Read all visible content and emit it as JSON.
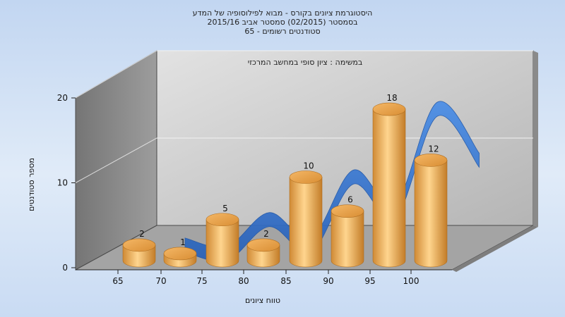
{
  "chart_data": {
    "type": "bar",
    "title_lines": [
      "היסטוגרמת ציונים בקורס - מבוא לפילוסופיה של המדע",
      "בסמסטר  (02/2015)  סמסטר אביב 2015/16",
      "סטודנטים רשומים - 65"
    ],
    "annotation": "במשימה : ציון סופי במחשב המרכזי",
    "xlabel": "טווח ציונים",
    "ylabel": "מספר סטודנטים",
    "x_ticks": [
      "65",
      "70",
      "75",
      "80",
      "85",
      "90",
      "95",
      "100"
    ],
    "y_ticks": [
      "0",
      "10",
      "20"
    ],
    "ylim": [
      0,
      20
    ],
    "grid": true,
    "categories": [
      "65-70",
      "70-75",
      "75-80",
      "80-85",
      "85-90",
      "90-95",
      "95-100",
      "100"
    ],
    "series": [
      {
        "values": [
          2,
          1,
          5,
          2,
          10,
          6,
          18,
          12
        ],
        "style": "3d-cylinder",
        "color": "#f2b05a"
      }
    ],
    "trend_ribbon": {
      "color": "#3a78d0"
    }
  }
}
